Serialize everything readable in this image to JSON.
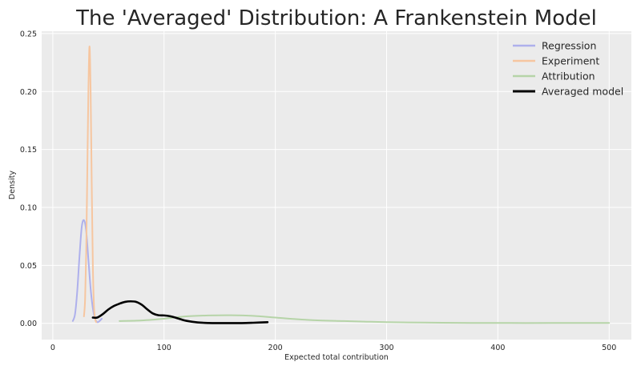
{
  "chart_data": {
    "type": "line",
    "title": "The 'Averaged' Distribution: A Frankenstein Model",
    "xlabel": "Expected total contribution",
    "ylabel": "Density",
    "xlim": [
      -10,
      520
    ],
    "ylim": [
      -0.014,
      0.252
    ],
    "xticks": [
      0,
      100,
      200,
      300,
      400,
      500
    ],
    "yticks": [
      0.0,
      0.05,
      0.1,
      0.15,
      0.2,
      0.25
    ],
    "xtick_labels": [
      "0",
      "100",
      "200",
      "300",
      "400",
      "500"
    ],
    "ytick_labels": [
      "0.00",
      "0.05",
      "0.10",
      "0.15",
      "0.20",
      "0.25"
    ],
    "grid": true,
    "legend_position": "top-right",
    "series": [
      {
        "name": "Regression",
        "color": "#aeb0ec",
        "width": 2,
        "x": [
          18,
          20,
          22,
          24,
          26,
          28,
          30,
          32,
          34,
          36,
          38,
          40,
          42,
          44
        ],
        "y": [
          0.002,
          0.008,
          0.028,
          0.058,
          0.083,
          0.089,
          0.08,
          0.055,
          0.03,
          0.013,
          0.004,
          0.001,
          0.002,
          0.004
        ]
      },
      {
        "name": "Experiment",
        "color": "#f6c6a0",
        "width": 2,
        "x": [
          28,
          29,
          30,
          31,
          32,
          33,
          34,
          35,
          36,
          37,
          38,
          39
        ],
        "y": [
          0.006,
          0.02,
          0.06,
          0.13,
          0.2,
          0.239,
          0.2,
          0.12,
          0.05,
          0.015,
          0.004,
          0.001
        ]
      },
      {
        "name": "Attribution",
        "color": "#b6d4a8",
        "width": 2,
        "x": [
          60,
          80,
          100,
          120,
          140,
          160,
          180,
          200,
          220,
          240,
          260,
          280,
          300,
          350,
          400,
          450,
          500
        ],
        "y": [
          0.002,
          0.0025,
          0.004,
          0.006,
          0.0068,
          0.007,
          0.0065,
          0.005,
          0.0035,
          0.0025,
          0.002,
          0.0015,
          0.001,
          0.0005,
          0.0003,
          0.0003,
          0.0003
        ]
      },
      {
        "name": "Averaged model",
        "color": "#000000",
        "width": 2.6,
        "x": [
          36,
          40,
          45,
          50,
          55,
          60,
          65,
          70,
          75,
          80,
          85,
          90,
          95,
          100,
          105,
          110,
          115,
          120,
          130,
          140,
          150,
          160,
          170,
          180,
          193
        ],
        "y": [
          0.005,
          0.005,
          0.008,
          0.012,
          0.015,
          0.017,
          0.0185,
          0.019,
          0.0185,
          0.016,
          0.012,
          0.0085,
          0.007,
          0.0068,
          0.0062,
          0.005,
          0.0035,
          0.0022,
          0.0008,
          0.0003,
          0.0002,
          0.0002,
          0.0002,
          0.0005,
          0.001
        ]
      }
    ]
  }
}
